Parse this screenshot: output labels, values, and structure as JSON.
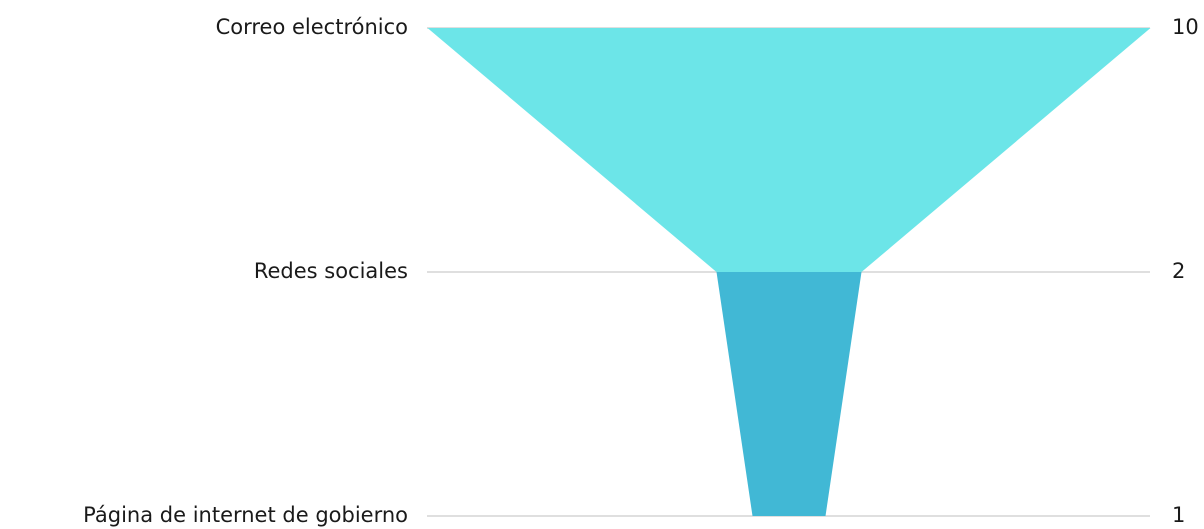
{
  "chart_data": {
    "type": "funnel",
    "categories": [
      "Correo electrónico",
      "Redes sociales",
      "Página de internet de gobierno"
    ],
    "values": [
      10,
      2,
      1
    ],
    "colors": [
      "#6ce5e8",
      "#41b8d5"
    ],
    "grid": true
  }
}
